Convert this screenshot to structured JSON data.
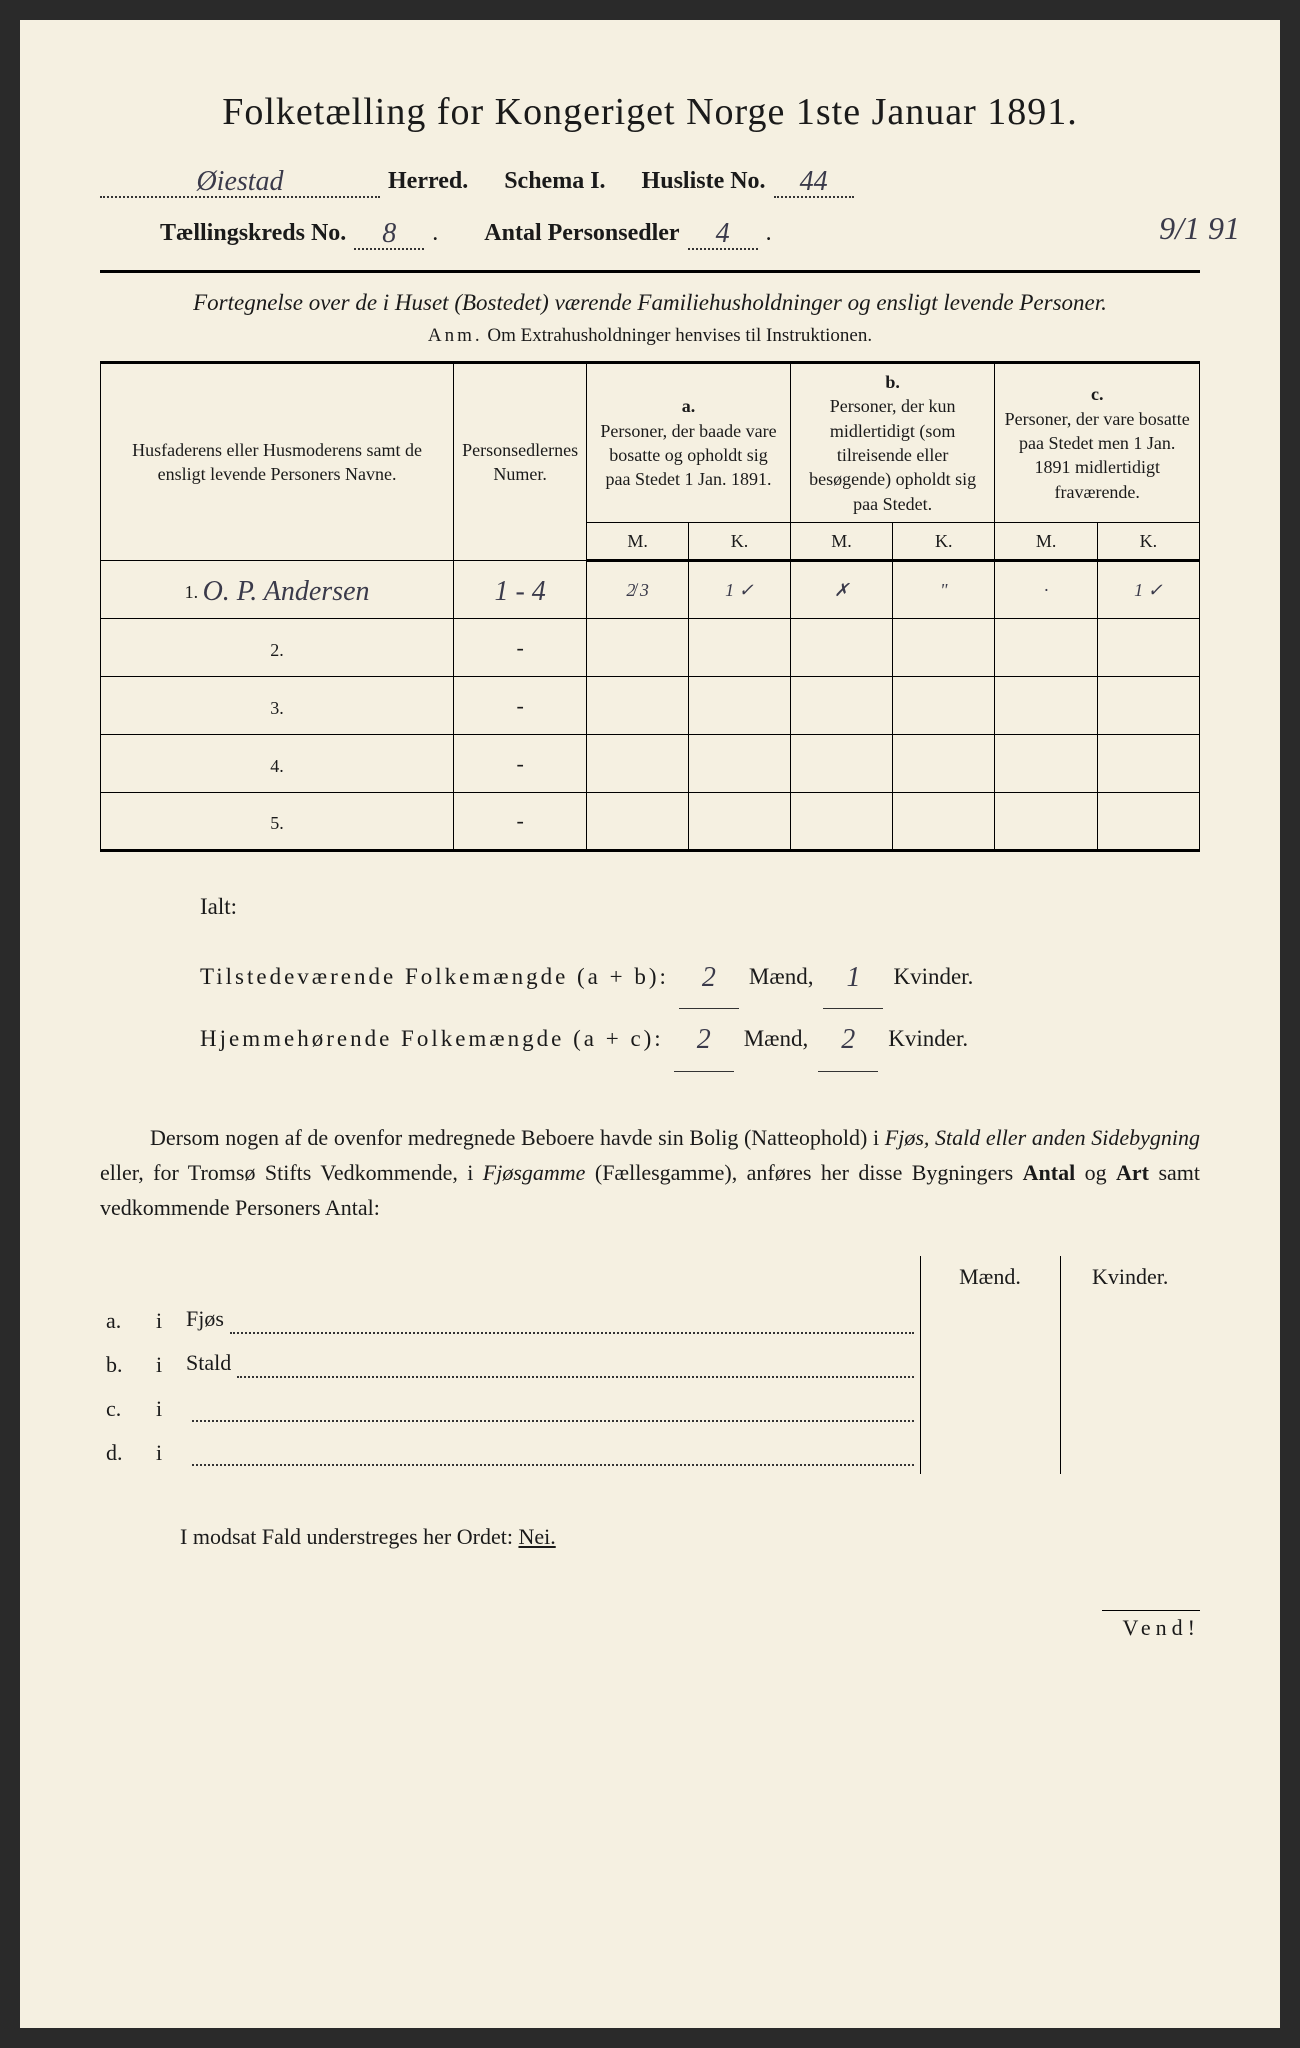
{
  "title": "Folketælling for Kongeriget Norge 1ste Januar 1891.",
  "header": {
    "herred_value": "Øiestad",
    "herred_label": "Herred.",
    "schema_label": "Schema I.",
    "husliste_label": "Husliste No.",
    "husliste_value": "44",
    "kreds_label": "Tællingskreds No.",
    "kreds_value": "8",
    "antal_label": "Antal Personsedler",
    "antal_value": "4",
    "date_annotation": "9/1 91"
  },
  "subtitle": "Fortegnelse over de i Huset (Bostedet) værende Familiehusholdninger og ensligt levende Personer.",
  "anm_prefix": "Anm.",
  "anm_text": "Om Extrahusholdninger henvises til Instruktionen.",
  "table_headers": {
    "col1": "Husfaderens eller Husmoderens samt de ensligt levende Personers Navne.",
    "col2": "Personsedlernes Numer.",
    "col_a_label": "a.",
    "col_a": "Personer, der baade vare bosatte og opholdt sig paa Stedet 1 Jan. 1891.",
    "col_b_label": "b.",
    "col_b": "Personer, der kun midlertidigt (som tilreisende eller besøgende) opholdt sig paa Stedet.",
    "col_c_label": "c.",
    "col_c": "Personer, der vare bosatte paa Stedet men 1 Jan. 1891 midlertidigt fraværende.",
    "m": "M.",
    "k": "K."
  },
  "rows": [
    {
      "num": "1.",
      "name": "O. P. Andersen",
      "sedler": "1 - 4",
      "a_m": "2̸ 3",
      "a_k": "1 ✓",
      "b_m": "✗",
      "b_k": "\"",
      "c_m": "·",
      "c_k": "1 ✓"
    },
    {
      "num": "2.",
      "name": "",
      "sedler": "-",
      "a_m": "",
      "a_k": "",
      "b_m": "",
      "b_k": "",
      "c_m": "",
      "c_k": ""
    },
    {
      "num": "3.",
      "name": "",
      "sedler": "-",
      "a_m": "",
      "a_k": "",
      "b_m": "",
      "b_k": "",
      "c_m": "",
      "c_k": ""
    },
    {
      "num": "4.",
      "name": "",
      "sedler": "-",
      "a_m": "",
      "a_k": "",
      "b_m": "",
      "b_k": "",
      "c_m": "",
      "c_k": ""
    },
    {
      "num": "5.",
      "name": "",
      "sedler": "-",
      "a_m": "",
      "a_k": "",
      "b_m": "",
      "b_k": "",
      "c_m": "",
      "c_k": ""
    }
  ],
  "totals": {
    "ialt": "Ialt:",
    "line1_label": "Tilstedeværende Folkemængde (a + b):",
    "line1_m": "2",
    "line1_k": "1",
    "line2_label": "Hjemmehørende Folkemængde (a + c):",
    "line2_m": "2",
    "line2_k": "2",
    "maend": "Mænd,",
    "kvinder": "Kvinder."
  },
  "paragraph": "Dersom nogen af de ovenfor medregnede Beboere havde sin Bolig (Natteophold) i Fjøs, Stald eller anden Sidebygning eller, for Tromsø Stifts Vedkommende, i Fjøsgamme (Fællesgamme), anføres her disse Bygningers Antal og Art samt vedkommende Personers Antal:",
  "lower_table": {
    "maend": "Mænd.",
    "kvinder": "Kvinder.",
    "rows": [
      {
        "label": "a.",
        "i": "i",
        "name": "Fjøs"
      },
      {
        "label": "b.",
        "i": "i",
        "name": "Stald"
      },
      {
        "label": "c.",
        "i": "i",
        "name": ""
      },
      {
        "label": "d.",
        "i": "i",
        "name": ""
      }
    ]
  },
  "footer": "I modsat Fald understreges her Ordet: ",
  "footer_nei": "Nei.",
  "vend": "Vend!"
}
